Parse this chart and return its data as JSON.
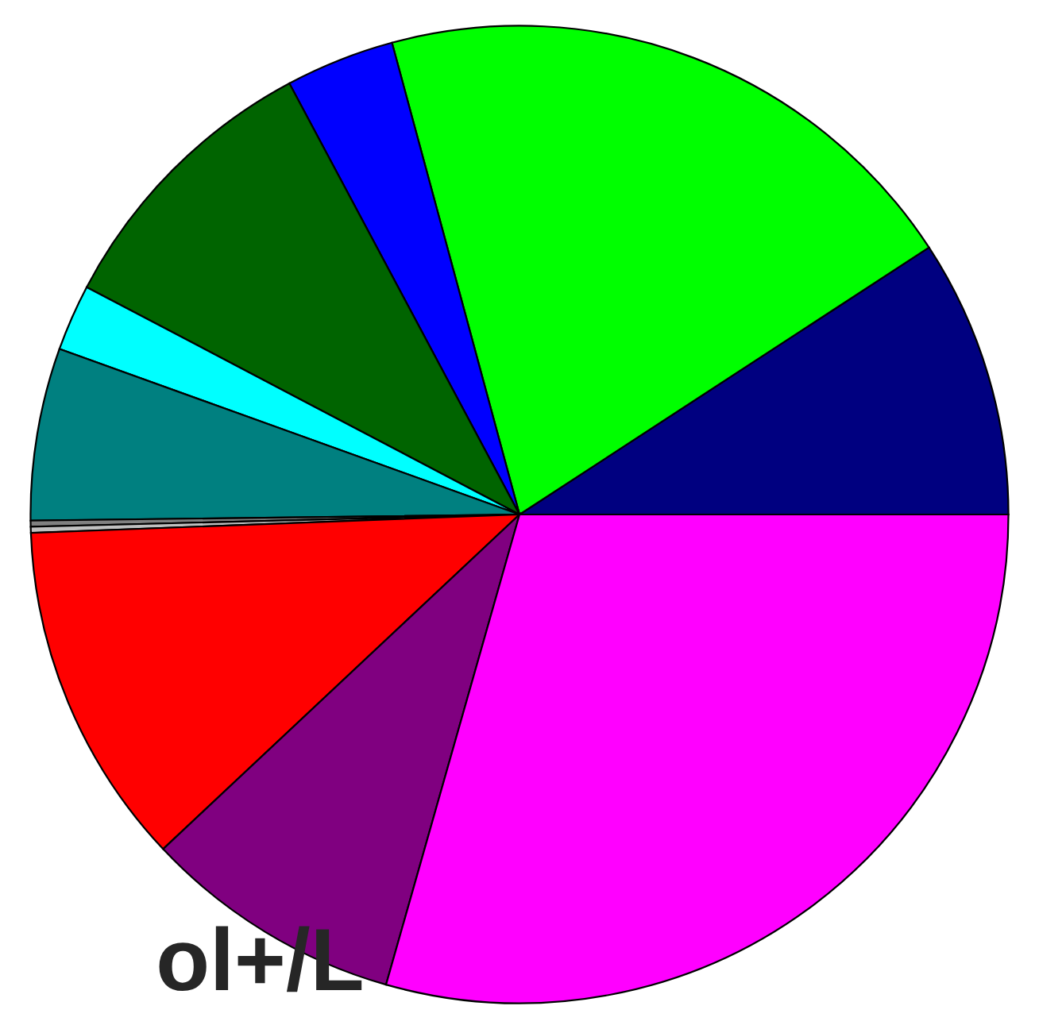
{
  "chart_data": {
    "type": "pie",
    "categories": [
      null,
      null,
      null,
      null,
      null,
      null,
      null,
      null,
      null,
      null,
      null
    ],
    "values": [
      9.2,
      20.0,
      3.6,
      9.5,
      2.2,
      5.7,
      0.2,
      0.2,
      11.4,
      8.6,
      29.4
    ],
    "colors": [
      "#000080",
      "#00ff00",
      "#0000ff",
      "#006400",
      "#00ffff",
      "#008080",
      "#808080",
      "#c0c0c0",
      "#ff0000",
      "#800080",
      "#ff00ff"
    ],
    "annotations": [
      "ol+/L"
    ]
  }
}
